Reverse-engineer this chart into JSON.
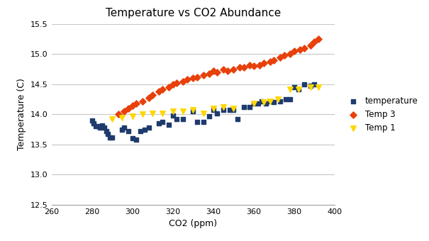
{
  "title": "Temperature vs CO2 Abundance",
  "xlabel": "CO2 (ppm)",
  "ylabel": "Temperature (C)",
  "xlim": [
    260,
    400
  ],
  "ylim": [
    12.5,
    15.5
  ],
  "xticks": [
    260,
    280,
    300,
    320,
    340,
    360,
    380,
    400
  ],
  "yticks": [
    12.5,
    13.0,
    13.5,
    14.0,
    14.5,
    15.0,
    15.5
  ],
  "background_color": "#ffffff",
  "grid_color": "#c8c8c8",
  "temp_color": "#1F3B6E",
  "temp3_color": "#E8400A",
  "temp1_color": "#FFD700",
  "temperature": {
    "co2": [
      280,
      281,
      282,
      283,
      284,
      285,
      286,
      287,
      288,
      289,
      290,
      295,
      296,
      298,
      300,
      302,
      304,
      306,
      308,
      313,
      315,
      318,
      320,
      322,
      325,
      330,
      332,
      335,
      338,
      340,
      342,
      345,
      348,
      350,
      352,
      355,
      358,
      360,
      362,
      364,
      366,
      368,
      370,
      373,
      376,
      378,
      380,
      382,
      385,
      388,
      390
    ],
    "temp": [
      13.9,
      13.85,
      13.8,
      13.8,
      13.78,
      13.82,
      13.78,
      13.72,
      13.68,
      13.62,
      13.62,
      13.75,
      13.78,
      13.72,
      13.6,
      13.58,
      13.72,
      13.75,
      13.78,
      13.85,
      13.88,
      13.83,
      13.98,
      13.92,
      13.92,
      14.05,
      13.88,
      13.88,
      13.97,
      14.08,
      14.02,
      14.08,
      14.08,
      14.08,
      13.92,
      14.12,
      14.12,
      14.18,
      14.18,
      14.22,
      14.18,
      14.22,
      14.2,
      14.22,
      14.25,
      14.25,
      14.45,
      14.42,
      14.5,
      14.48,
      14.5
    ]
  },
  "temp3": {
    "co2": [
      293,
      296,
      298,
      300,
      302,
      305,
      308,
      310,
      313,
      315,
      318,
      320,
      322,
      325,
      327,
      330,
      332,
      335,
      338,
      340,
      342,
      345,
      347,
      350,
      353,
      355,
      358,
      360,
      363,
      365,
      368,
      370,
      373,
      375,
      378,
      380,
      383,
      385,
      388,
      390,
      392
    ],
    "temp": [
      14.0,
      14.05,
      14.1,
      14.15,
      14.18,
      14.22,
      14.28,
      14.32,
      14.38,
      14.42,
      14.45,
      14.5,
      14.52,
      14.55,
      14.58,
      14.6,
      14.62,
      14.65,
      14.68,
      14.72,
      14.7,
      14.75,
      14.72,
      14.75,
      14.78,
      14.78,
      14.82,
      14.8,
      14.82,
      14.85,
      14.88,
      14.9,
      14.95,
      14.98,
      15.0,
      15.05,
      15.08,
      15.1,
      15.15,
      15.2,
      15.25
    ]
  },
  "temp1": {
    "co2": [
      290,
      295,
      300,
      305,
      310,
      315,
      320,
      325,
      330,
      335,
      340,
      345,
      350,
      360,
      365,
      368,
      372,
      378,
      382,
      388,
      392
    ],
    "temp": [
      13.92,
      13.95,
      13.97,
      14.0,
      14.02,
      14.02,
      14.05,
      14.05,
      14.08,
      14.02,
      14.1,
      14.12,
      14.1,
      14.18,
      14.2,
      14.22,
      14.25,
      14.42,
      14.42,
      14.45,
      14.45
    ]
  }
}
